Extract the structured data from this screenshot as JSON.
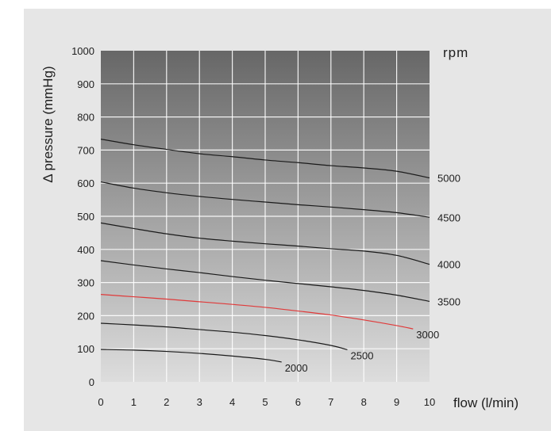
{
  "chart_data": {
    "type": "line",
    "title": "",
    "xlabel": "flow (l/min)",
    "ylabel": "Δ pressure (mmHg)",
    "legend_title": "rpm",
    "xlim": [
      0,
      10
    ],
    "ylim": [
      0,
      1000
    ],
    "x_ticks": [
      0,
      1,
      2,
      3,
      4,
      5,
      6,
      7,
      8,
      9,
      10
    ],
    "y_ticks": [
      0,
      100,
      200,
      300,
      400,
      500,
      600,
      700,
      800,
      900,
      1000
    ],
    "grid": true,
    "background_gradient": [
      "#dddddd",
      "#676767"
    ],
    "series": [
      {
        "name": "2000",
        "color": "#1a1a1a",
        "x": [
          0,
          1,
          2,
          3,
          4,
          5,
          5.5
        ],
        "y": [
          98,
          96,
          92,
          86,
          78,
          68,
          60
        ]
      },
      {
        "name": "2500",
        "color": "#1a1a1a",
        "x": [
          0,
          1,
          2,
          3,
          4,
          5,
          6,
          7,
          7.5
        ],
        "y": [
          177,
          172,
          166,
          158,
          150,
          140,
          127,
          110,
          97
        ]
      },
      {
        "name": "3000",
        "color": "#e03a3a",
        "x": [
          0,
          1,
          2,
          3,
          4,
          5,
          6,
          7,
          8,
          9,
          9.5
        ],
        "y": [
          264,
          257,
          250,
          242,
          234,
          225,
          214,
          202,
          187,
          170,
          160
        ]
      },
      {
        "name": "3500",
        "color": "#1a1a1a",
        "x": [
          0,
          1,
          2,
          3,
          4,
          5,
          6,
          7,
          8,
          9,
          10
        ],
        "y": [
          366,
          353,
          341,
          330,
          318,
          307,
          297,
          287,
          276,
          262,
          243
        ]
      },
      {
        "name": "4000",
        "color": "#1a1a1a",
        "x": [
          0,
          1,
          2,
          3,
          4,
          5,
          6,
          7,
          8,
          9,
          10
        ],
        "y": [
          480,
          463,
          447,
          434,
          425,
          417,
          410,
          402,
          395,
          382,
          355
        ]
      },
      {
        "name": "4500",
        "color": "#1a1a1a",
        "x": [
          0,
          1,
          2,
          3,
          4,
          5,
          6,
          7,
          8,
          9,
          10
        ],
        "y": [
          604,
          585,
          571,
          560,
          551,
          543,
          535,
          528,
          520,
          511,
          497
        ]
      },
      {
        "name": "5000",
        "color": "#1a1a1a",
        "x": [
          0,
          1,
          2,
          3,
          4,
          5,
          6,
          7,
          8,
          9,
          10
        ],
        "y": [
          733,
          716,
          702,
          689,
          680,
          670,
          662,
          653,
          646,
          636,
          616
        ]
      }
    ]
  }
}
